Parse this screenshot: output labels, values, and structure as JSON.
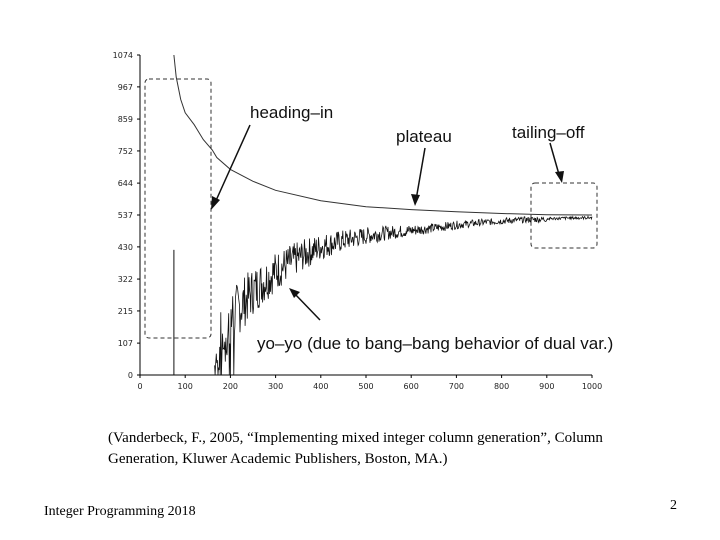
{
  "chart_data": {
    "type": "line",
    "xlim": [
      0,
      1000
    ],
    "ylim": [
      0,
      1074
    ],
    "x_ticks": [
      "0",
      "100",
      "200",
      "300",
      "400",
      "500",
      "600",
      "700",
      "800",
      "900",
      "1000"
    ],
    "y_ticks": [
      "0",
      "107",
      "215",
      "322",
      "430",
      "537",
      "644",
      "752",
      "859",
      "967",
      "1074"
    ],
    "grid": false,
    "series": [
      {
        "role": "upper bound (master LP value)",
        "x": [
          75,
          80,
          90,
          100,
          120,
          140,
          160,
          170,
          200,
          250,
          300,
          400,
          500,
          600,
          700,
          800,
          900,
          1000
        ],
        "y": [
          1074,
          1000,
          925,
          880,
          840,
          790,
          755,
          730,
          690,
          650,
          620,
          585,
          565,
          555,
          548,
          542,
          538,
          537
        ]
      },
      {
        "role": "lower bound (noisy, yo-yo)",
        "x": [
          165,
          170,
          180,
          200,
          250,
          300,
          350,
          400,
          450,
          500,
          550,
          600,
          650,
          700,
          750,
          800,
          850,
          900,
          950,
          1000
        ],
        "y": [
          30,
          70,
          130,
          200,
          290,
          355,
          400,
          435,
          455,
          470,
          480,
          487,
          495,
          505,
          512,
          518,
          522,
          524,
          527,
          528
        ]
      },
      {
        "role": "isolated spike",
        "x": [
          75,
          75
        ],
        "y": [
          0,
          420
        ]
      }
    ],
    "annotations": [
      {
        "text": "heading–in"
      },
      {
        "text": "plateau"
      },
      {
        "text": "tailing–off"
      },
      {
        "text": "yo–yo (due to bang–bang behavior of dual var.)"
      }
    ]
  },
  "caption": "(Vanderbeck, F., 2005, “Implementing mixed integer column generation”, Column Generation, Kluwer Academic Publishers, Boston, MA.)",
  "footer": "Integer Programming 2018",
  "page_number": "2"
}
